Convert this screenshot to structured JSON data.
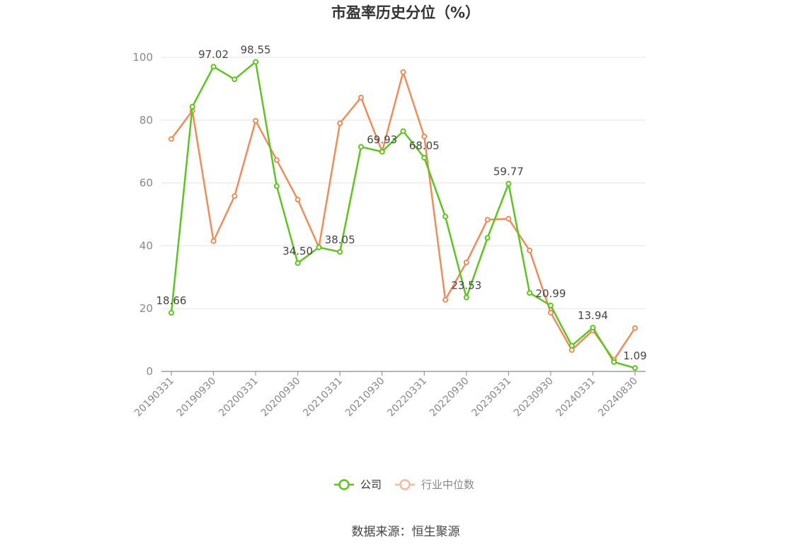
{
  "chart_data": {
    "type": "line",
    "title": "市盈率历史分位（%）",
    "source": "数据来源：恒生聚源",
    "ylim": [
      0,
      100
    ],
    "yticks": [
      "0",
      "20",
      "40",
      "60",
      "80",
      "100"
    ],
    "x": [
      "20190331",
      "20190630",
      "20190930",
      "20191231",
      "20200331",
      "20200630",
      "20200930",
      "20201231",
      "20210331",
      "20210630",
      "20210930",
      "20211231",
      "20220331",
      "20220630",
      "20220930",
      "20221231",
      "20230331",
      "20230630",
      "20230930",
      "20231231",
      "20240331",
      "20240630",
      "20240830"
    ],
    "xtick_labels": [
      "20190331",
      "20190930",
      "20200331",
      "20200930",
      "20210331",
      "20210930",
      "20220331",
      "20220930",
      "20230331",
      "20230930",
      "20240331",
      "20240830"
    ],
    "legend_position": "bottom",
    "grid": true,
    "series": [
      {
        "name": "公司",
        "color": "#5ec41f",
        "values": [
          18.66,
          84.3,
          97.02,
          93.0,
          98.55,
          59.0,
          34.5,
          39.5,
          38.05,
          71.5,
          69.93,
          76.5,
          68.05,
          49.3,
          23.53,
          42.5,
          59.77,
          25.0,
          20.99,
          8.2,
          13.94,
          3.0,
          1.09
        ],
        "labels": [
          "18.66",
          "",
          "97.02",
          "",
          "98.55",
          "",
          "34.50",
          "",
          "38.05",
          "",
          "69.93",
          "",
          "68.05",
          "",
          "23.53",
          "",
          "59.77",
          "",
          "20.99",
          "",
          "13.94",
          "",
          "1.09"
        ]
      },
      {
        "name": "行业中位数",
        "color": "#f08c5a",
        "values": [
          74.0,
          83.0,
          41.5,
          55.8,
          79.8,
          67.3,
          54.7,
          39.5,
          79.0,
          87.2,
          70.0,
          95.3,
          74.8,
          22.8,
          34.7,
          48.3,
          48.6,
          38.5,
          18.7,
          6.8,
          13.1,
          3.7,
          13.8
        ]
      }
    ]
  }
}
